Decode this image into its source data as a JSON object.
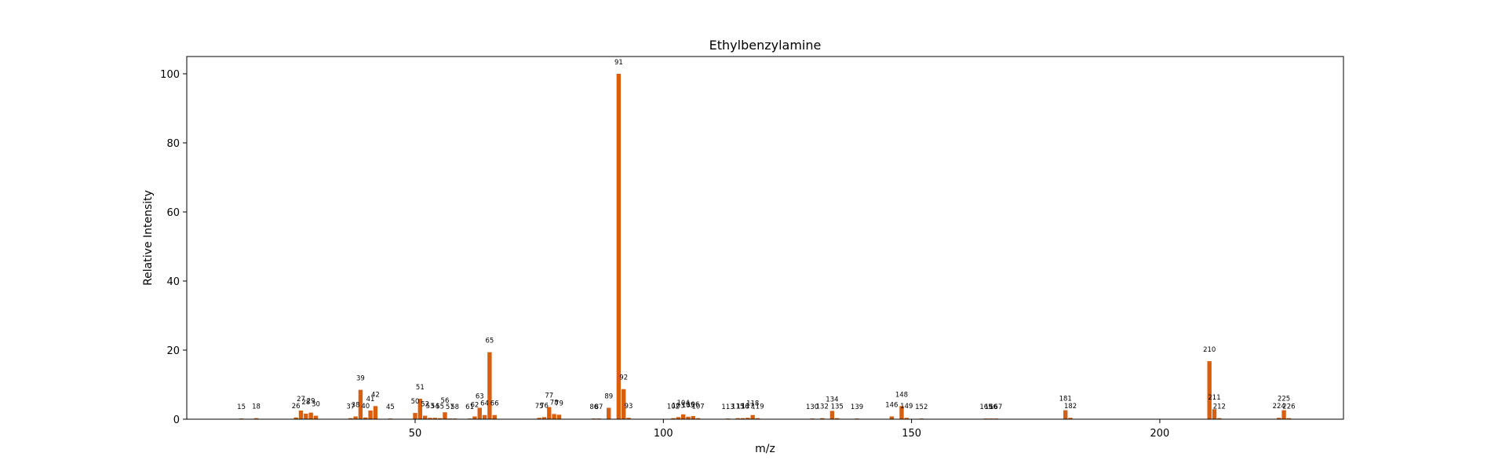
{
  "chart_data": {
    "type": "bar",
    "title": "Ethylbenzylamine",
    "xlabel": "m/z",
    "ylabel": "Relative Intensity",
    "xlim": [
      4,
      237
    ],
    "ylim": [
      0,
      105
    ],
    "xticks": [
      50,
      100,
      150,
      200
    ],
    "yticks": [
      0,
      20,
      40,
      60,
      80,
      100
    ],
    "bar_color": "#d95f0e",
    "grid": false,
    "legend": "none",
    "peaks": [
      {
        "mz": 15,
        "intensity": 0.2
      },
      {
        "mz": 18,
        "intensity": 0.3
      },
      {
        "mz": 26,
        "intensity": 0.5
      },
      {
        "mz": 27,
        "intensity": 2.5
      },
      {
        "mz": 28,
        "intensity": 1.6
      },
      {
        "mz": 29,
        "intensity": 1.9
      },
      {
        "mz": 30,
        "intensity": 1.0
      },
      {
        "mz": 37,
        "intensity": 0.3
      },
      {
        "mz": 38,
        "intensity": 0.8
      },
      {
        "mz": 39,
        "intensity": 8.5
      },
      {
        "mz": 40,
        "intensity": 0.5
      },
      {
        "mz": 41,
        "intensity": 2.5
      },
      {
        "mz": 42,
        "intensity": 3.8
      },
      {
        "mz": 45,
        "intensity": 0.2
      },
      {
        "mz": 50,
        "intensity": 1.8
      },
      {
        "mz": 51,
        "intensity": 5.9
      },
      {
        "mz": 52,
        "intensity": 1.0
      },
      {
        "mz": 53,
        "intensity": 0.4
      },
      {
        "mz": 54,
        "intensity": 0.4
      },
      {
        "mz": 55,
        "intensity": 0.3
      },
      {
        "mz": 56,
        "intensity": 2.0
      },
      {
        "mz": 57,
        "intensity": 0.2
      },
      {
        "mz": 58,
        "intensity": 0.2
      },
      {
        "mz": 61,
        "intensity": 0.2
      },
      {
        "mz": 62,
        "intensity": 0.8
      },
      {
        "mz": 63,
        "intensity": 3.3
      },
      {
        "mz": 64,
        "intensity": 1.2
      },
      {
        "mz": 65,
        "intensity": 19.4
      },
      {
        "mz": 66,
        "intensity": 1.2
      },
      {
        "mz": 75,
        "intensity": 0.4
      },
      {
        "mz": 76,
        "intensity": 0.6
      },
      {
        "mz": 77,
        "intensity": 3.5
      },
      {
        "mz": 78,
        "intensity": 1.5
      },
      {
        "mz": 79,
        "intensity": 1.3
      },
      {
        "mz": 86,
        "intensity": 0.2
      },
      {
        "mz": 87,
        "intensity": 0.2
      },
      {
        "mz": 89,
        "intensity": 3.3
      },
      {
        "mz": 91,
        "intensity": 100
      },
      {
        "mz": 92,
        "intensity": 8.7
      },
      {
        "mz": 93,
        "intensity": 0.4
      },
      {
        "mz": 102,
        "intensity": 0.3
      },
      {
        "mz": 103,
        "intensity": 0.6
      },
      {
        "mz": 104,
        "intensity": 1.4
      },
      {
        "mz": 105,
        "intensity": 0.7
      },
      {
        "mz": 106,
        "intensity": 0.9
      },
      {
        "mz": 107,
        "intensity": 0.3
      },
      {
        "mz": 113,
        "intensity": 0.2
      },
      {
        "mz": 115,
        "intensity": 0.3
      },
      {
        "mz": 116,
        "intensity": 0.3
      },
      {
        "mz": 117,
        "intensity": 0.4
      },
      {
        "mz": 118,
        "intensity": 1.2
      },
      {
        "mz": 119,
        "intensity": 0.3
      },
      {
        "mz": 130,
        "intensity": 0.2
      },
      {
        "mz": 132,
        "intensity": 0.3
      },
      {
        "mz": 134,
        "intensity": 2.4
      },
      {
        "mz": 135,
        "intensity": 0.3
      },
      {
        "mz": 139,
        "intensity": 0.2
      },
      {
        "mz": 146,
        "intensity": 0.8
      },
      {
        "mz": 148,
        "intensity": 3.8
      },
      {
        "mz": 149,
        "intensity": 0.4
      },
      {
        "mz": 152,
        "intensity": 0.2
      },
      {
        "mz": 165,
        "intensity": 0.2
      },
      {
        "mz": 166,
        "intensity": 0.2
      },
      {
        "mz": 167,
        "intensity": 0.2
      },
      {
        "mz": 181,
        "intensity": 2.6
      },
      {
        "mz": 182,
        "intensity": 0.4
      },
      {
        "mz": 210,
        "intensity": 16.8
      },
      {
        "mz": 211,
        "intensity": 2.9
      },
      {
        "mz": 212,
        "intensity": 0.3
      },
      {
        "mz": 224,
        "intensity": 0.4
      },
      {
        "mz": 225,
        "intensity": 2.6
      },
      {
        "mz": 226,
        "intensity": 0.3
      }
    ]
  }
}
